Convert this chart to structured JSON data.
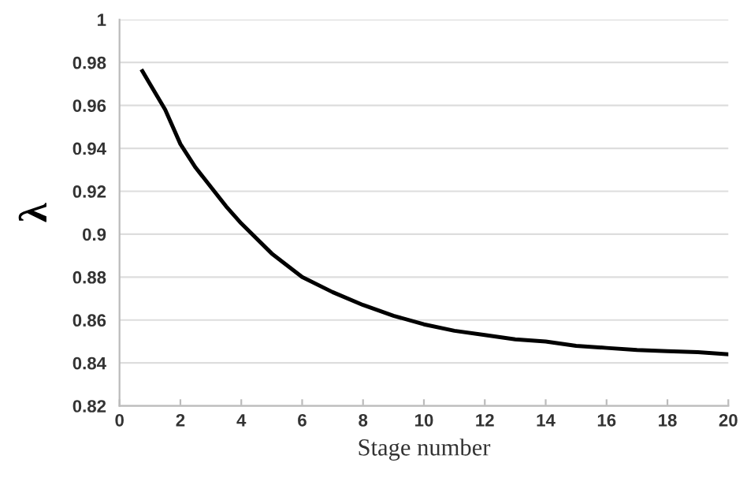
{
  "chart_data": {
    "type": "line",
    "xlabel": "Stage number",
    "ylabel": "λ",
    "x": [
      0.75,
      1,
      1.5,
      2,
      2.5,
      3,
      3.5,
      4,
      5,
      6,
      7,
      8,
      9,
      10,
      11,
      12,
      13,
      14,
      15,
      16,
      17,
      18,
      19,
      20
    ],
    "series": [
      {
        "color": "#000000",
        "values": [
          0.976,
          0.97,
          0.958,
          0.942,
          0.931,
          0.922,
          0.913,
          0.905,
          0.891,
          0.88,
          0.873,
          0.867,
          0.862,
          0.858,
          0.855,
          0.853,
          0.851,
          0.85,
          0.848,
          0.847,
          0.846,
          0.8455,
          0.845,
          0.844
        ]
      }
    ],
    "xlim": [
      0,
      20
    ],
    "xticks": [
      0,
      2,
      4,
      6,
      8,
      10,
      12,
      14,
      16,
      18,
      20
    ],
    "ylim": [
      0.82,
      1
    ],
    "yticks": [
      0.82,
      0.84,
      0.86,
      0.88,
      0.9,
      0.92,
      0.94,
      0.96,
      0.98,
      1
    ],
    "grid": "y",
    "legend": false,
    "marker": "none",
    "line_style": "solid"
  }
}
